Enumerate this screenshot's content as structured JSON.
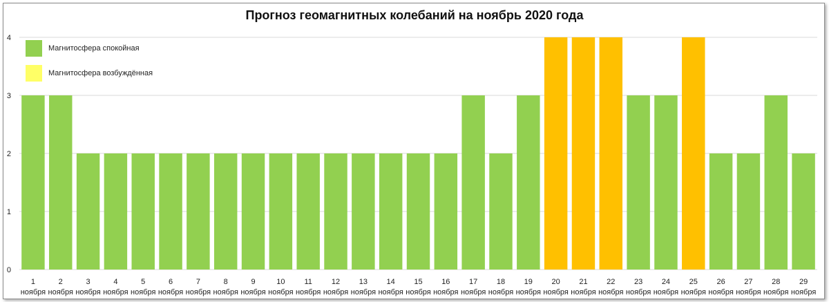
{
  "chart_data": {
    "type": "bar",
    "title": "Прогноз геомагнитных колебаний  на ноябрь 2020 года",
    "ylim": [
      0,
      4
    ],
    "yticks": [
      "0",
      "1",
      "2",
      "3",
      "4"
    ],
    "grid": true,
    "legend_position": "top-left",
    "colors": {
      "calm": "#92d050",
      "excited": "#ffc000",
      "legend_excited_swatch": "#ffff66",
      "grid": "#d9d9d9"
    },
    "legend": [
      {
        "label": "Магнитосфера спокойная",
        "color": "#92d050"
      },
      {
        "label": "Магнитосфера возбуждённая",
        "color": "#ffff66"
      }
    ],
    "categories": [
      {
        "day": "1",
        "month": "ноября",
        "value": 3,
        "state": "calm"
      },
      {
        "day": "2",
        "month": "ноября",
        "value": 3,
        "state": "calm"
      },
      {
        "day": "3",
        "month": "ноября",
        "value": 2,
        "state": "calm"
      },
      {
        "day": "4",
        "month": "ноября",
        "value": 2,
        "state": "calm"
      },
      {
        "day": "5",
        "month": "ноября",
        "value": 2,
        "state": "calm"
      },
      {
        "day": "6",
        "month": "ноября",
        "value": 2,
        "state": "calm"
      },
      {
        "day": "7",
        "month": "ноября",
        "value": 2,
        "state": "calm"
      },
      {
        "day": "8",
        "month": "ноября",
        "value": 2,
        "state": "calm"
      },
      {
        "day": "9",
        "month": "ноября",
        "value": 2,
        "state": "calm"
      },
      {
        "day": "10",
        "month": "ноября",
        "value": 2,
        "state": "calm"
      },
      {
        "day": "11",
        "month": "ноября",
        "value": 2,
        "state": "calm"
      },
      {
        "day": "12",
        "month": "ноября",
        "value": 2,
        "state": "calm"
      },
      {
        "day": "13",
        "month": "ноября",
        "value": 2,
        "state": "calm"
      },
      {
        "day": "14",
        "month": "ноября",
        "value": 2,
        "state": "calm"
      },
      {
        "day": "15",
        "month": "ноября",
        "value": 2,
        "state": "calm"
      },
      {
        "day": "16",
        "month": "ноября",
        "value": 2,
        "state": "calm"
      },
      {
        "day": "17",
        "month": "ноября",
        "value": 3,
        "state": "calm"
      },
      {
        "day": "18",
        "month": "ноября",
        "value": 2,
        "state": "calm"
      },
      {
        "day": "19",
        "month": "ноября",
        "value": 3,
        "state": "calm"
      },
      {
        "day": "20",
        "month": "ноября",
        "value": 4,
        "state": "excited"
      },
      {
        "day": "21",
        "month": "ноября",
        "value": 4,
        "state": "excited"
      },
      {
        "day": "22",
        "month": "ноября",
        "value": 4,
        "state": "excited"
      },
      {
        "day": "23",
        "month": "ноября",
        "value": 3,
        "state": "calm"
      },
      {
        "day": "24",
        "month": "ноября",
        "value": 3,
        "state": "calm"
      },
      {
        "day": "25",
        "month": "ноября",
        "value": 4,
        "state": "excited"
      },
      {
        "day": "26",
        "month": "ноября",
        "value": 2,
        "state": "calm"
      },
      {
        "day": "27",
        "month": "ноября",
        "value": 2,
        "state": "calm"
      },
      {
        "day": "28",
        "month": "ноября",
        "value": 3,
        "state": "calm"
      },
      {
        "day": "29",
        "month": "ноября",
        "value": 2,
        "state": "calm"
      }
    ]
  }
}
